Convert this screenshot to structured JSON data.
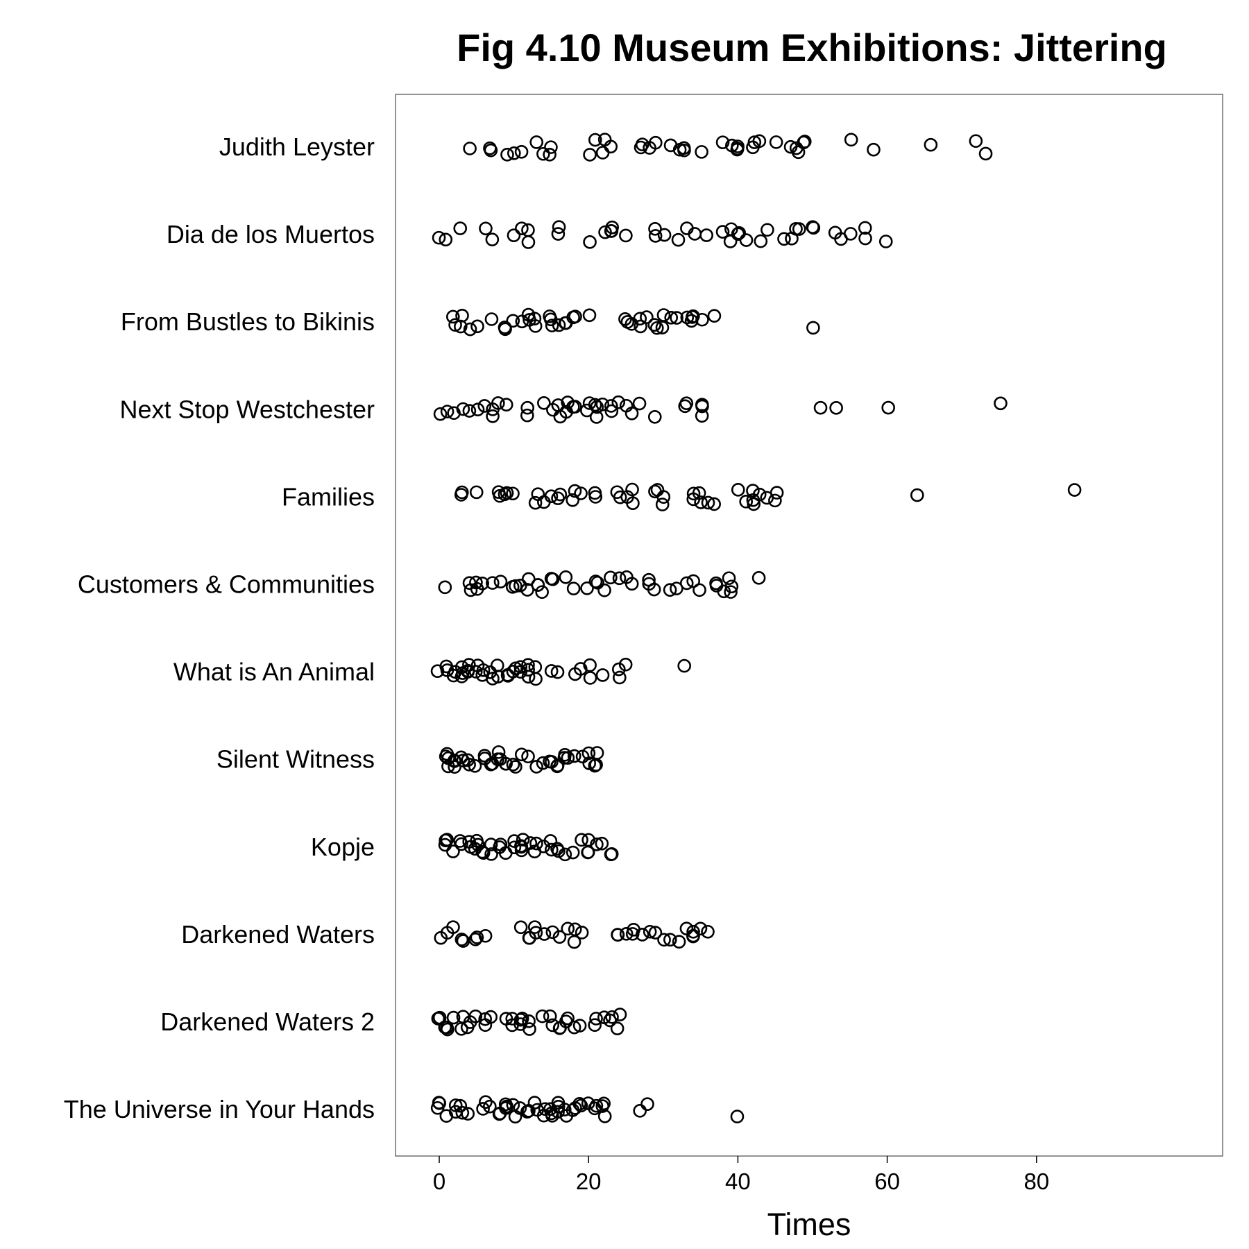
{
  "chart_data": {
    "type": "scatter",
    "title": "Fig 4.10 Museum Exhibitions: Jittering",
    "xlabel": "Times",
    "ylabel": "",
    "xlim": [
      -6,
      105
    ],
    "xticks": [
      0,
      20,
      40,
      60,
      80
    ],
    "grid": false,
    "legend": "none",
    "jittered": true,
    "marker": "open-circle",
    "categories": [
      "Judith Leyster",
      "Dia de los Muertos",
      "From Bustles to Bikinis",
      "Next Stop Westchester",
      "Families",
      "Customers & Communities",
      "What is An Animal",
      "Silent Witness",
      "Kopje",
      "Darkened Waters",
      "Darkened Waters 2",
      "The Universe in Your Hands"
    ],
    "series": [
      {
        "category": "Judith Leyster",
        "values": [
          4,
          7,
          7,
          9,
          10,
          11,
          13,
          14,
          15,
          15,
          20,
          21,
          22,
          22,
          23,
          27,
          27,
          28,
          29,
          31,
          32,
          33,
          33,
          35,
          38,
          39,
          40,
          40,
          40,
          42,
          42,
          43,
          45,
          47,
          48,
          48,
          49,
          49,
          55,
          58,
          66,
          72,
          73
        ]
      },
      {
        "category": "Dia de los Muertos",
        "values": [
          0,
          1,
          3,
          6,
          7,
          10,
          11,
          12,
          12,
          16,
          16,
          20,
          22,
          23,
          23,
          23,
          25,
          29,
          29,
          30,
          32,
          33,
          34,
          36,
          38,
          39,
          39,
          40,
          40,
          41,
          43,
          44,
          46,
          47,
          48,
          48,
          50,
          50,
          53,
          54,
          55,
          57,
          57,
          60
        ]
      },
      {
        "category": "From Bustles to Bikinis",
        "values": [
          2,
          2,
          3,
          3,
          4,
          5,
          7,
          9,
          9,
          10,
          11,
          12,
          12,
          13,
          13,
          15,
          15,
          15,
          16,
          17,
          17,
          18,
          18,
          20,
          25,
          25,
          26,
          27,
          27,
          28,
          29,
          29,
          30,
          30,
          31,
          32,
          33,
          34,
          34,
          34,
          35,
          37,
          50
        ]
      },
      {
        "category": "Next Stop Westchester",
        "values": [
          0,
          1,
          2,
          3,
          4,
          5,
          6,
          7,
          7,
          8,
          9,
          12,
          12,
          14,
          15,
          16,
          16,
          17,
          17,
          18,
          18,
          20,
          20,
          21,
          21,
          21,
          22,
          23,
          23,
          24,
          25,
          26,
          27,
          29,
          33,
          33,
          35,
          35,
          35,
          51,
          53,
          60,
          75
        ]
      },
      {
        "category": "Families",
        "values": [
          3,
          3,
          5,
          8,
          8,
          9,
          9,
          10,
          13,
          13,
          14,
          15,
          16,
          16,
          18,
          18,
          19,
          21,
          21,
          24,
          24,
          25,
          26,
          26,
          29,
          29,
          30,
          30,
          34,
          34,
          35,
          35,
          36,
          37,
          40,
          41,
          42,
          42,
          42,
          43,
          44,
          45,
          45,
          64,
          85
        ]
      },
      {
        "category": "Customers & Communities",
        "values": [
          1,
          4,
          4,
          5,
          5,
          6,
          7,
          8,
          10,
          10,
          11,
          12,
          12,
          13,
          13,
          14,
          15,
          15,
          17,
          18,
          20,
          21,
          21,
          22,
          23,
          24,
          25,
          26,
          28,
          28,
          29,
          31,
          32,
          33,
          34,
          35,
          37,
          37,
          38,
          39,
          39,
          39,
          43
        ]
      },
      {
        "category": "What is An Animal",
        "values": [
          0,
          1,
          1,
          2,
          2,
          3,
          3,
          3,
          4,
          4,
          4,
          5,
          5,
          6,
          6,
          7,
          7,
          8,
          8,
          9,
          9,
          10,
          10,
          11,
          11,
          12,
          12,
          12,
          13,
          13,
          15,
          16,
          18,
          19,
          20,
          20,
          22,
          24,
          24,
          25,
          33
        ]
      },
      {
        "category": "Silent Witness",
        "values": [
          1,
          1,
          1,
          1,
          2,
          2,
          2,
          3,
          3,
          4,
          4,
          5,
          6,
          6,
          7,
          7,
          8,
          8,
          8,
          9,
          9,
          10,
          10,
          11,
          12,
          13,
          14,
          15,
          15,
          16,
          16,
          17,
          17,
          17,
          18,
          19,
          20,
          20,
          21,
          21,
          21
        ]
      },
      {
        "category": "Kopje",
        "values": [
          1,
          1,
          1,
          2,
          3,
          3,
          4,
          4,
          5,
          5,
          5,
          6,
          6,
          7,
          7,
          8,
          8,
          9,
          10,
          10,
          11,
          11,
          11,
          11,
          12,
          13,
          13,
          14,
          15,
          15,
          16,
          16,
          17,
          18,
          19,
          20,
          20,
          20,
          21,
          22,
          23,
          23
        ]
      },
      {
        "category": "Darkened Waters",
        "values": [
          0,
          1,
          2,
          3,
          3,
          5,
          5,
          6,
          11,
          12,
          12,
          13,
          13,
          14,
          15,
          16,
          17,
          18,
          18,
          19,
          24,
          24,
          25,
          26,
          26,
          27,
          28,
          29,
          30,
          31,
          32,
          33,
          34,
          34,
          34,
          35,
          36
        ]
      },
      {
        "category": "Darkened Waters 2",
        "values": [
          0,
          0,
          1,
          1,
          1,
          2,
          3,
          3,
          4,
          4,
          5,
          6,
          6,
          7,
          9,
          10,
          10,
          11,
          11,
          11,
          12,
          12,
          14,
          15,
          15,
          16,
          16,
          17,
          17,
          18,
          19,
          21,
          21,
          22,
          23,
          23,
          24,
          24
        ]
      },
      {
        "category": "The Universe in Your Hands",
        "values": [
          0,
          0,
          0,
          1,
          2,
          2,
          3,
          3,
          4,
          6,
          6,
          7,
          8,
          8,
          9,
          9,
          9,
          10,
          10,
          11,
          12,
          12,
          13,
          13,
          14,
          14,
          15,
          15,
          15,
          16,
          16,
          16,
          17,
          17,
          18,
          18,
          19,
          19,
          20,
          21,
          21,
          22,
          22,
          22,
          27,
          28,
          40
        ]
      }
    ]
  }
}
